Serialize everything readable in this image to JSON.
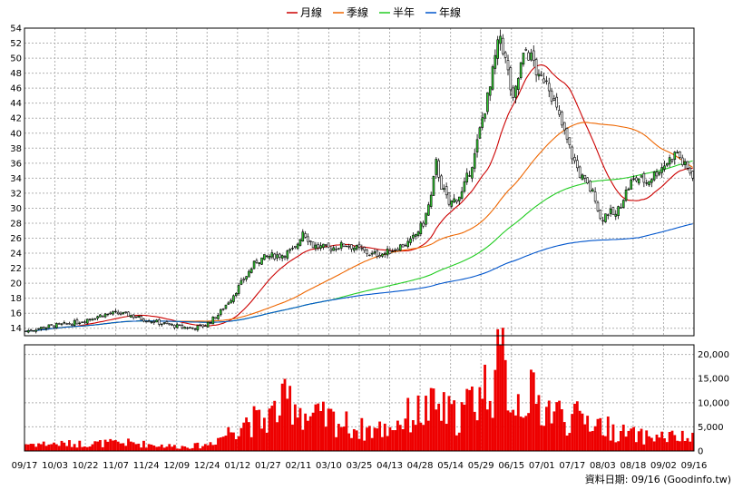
{
  "chart_data": {
    "type": "candlestick",
    "legend": [
      {
        "name": "月線",
        "color": "#cc0000"
      },
      {
        "name": "季線",
        "color": "#ee6600"
      },
      {
        "name": "半年",
        "color": "#22cc22"
      },
      {
        "name": "年線",
        "color": "#0055cc"
      }
    ],
    "legend_position": "top-center",
    "grid": true,
    "price_axis": {
      "ylim": [
        13,
        54
      ],
      "ticks": [
        14,
        16,
        18,
        20,
        22,
        24,
        26,
        28,
        30,
        32,
        34,
        36,
        38,
        40,
        42,
        44,
        46,
        48,
        50,
        52,
        54
      ]
    },
    "volume_axis": {
      "ylim": [
        0,
        22000
      ],
      "ticks": [
        0,
        5000,
        10000,
        15000,
        20000
      ],
      "tick_labels": [
        "0",
        "5,000",
        "10,000",
        "15,000",
        "20,000"
      ]
    },
    "x_tick_labels": [
      "09/17",
      "10/03",
      "10/22",
      "11/07",
      "11/24",
      "12/09",
      "12/24",
      "01/12",
      "01/27",
      "02/11",
      "03/10",
      "03/25",
      "04/13",
      "04/28",
      "05/14",
      "05/29",
      "06/15",
      "07/01",
      "07/17",
      "08/03",
      "08/18",
      "09/02",
      "09/16"
    ],
    "up_color": "#33cc33",
    "down_color": "#ffffff",
    "volume_color": "#ee0000",
    "price_anchors": [
      [
        0,
        13.6
      ],
      [
        5,
        14.0
      ],
      [
        10,
        14.3
      ],
      [
        15,
        14.5
      ],
      [
        20,
        14.8
      ],
      [
        25,
        15.3
      ],
      [
        30,
        15.8
      ],
      [
        35,
        16.0
      ],
      [
        40,
        15.8
      ],
      [
        45,
        15.3
      ],
      [
        50,
        14.9
      ],
      [
        55,
        14.5
      ],
      [
        60,
        14.2
      ],
      [
        65,
        14.0
      ],
      [
        70,
        14.4
      ],
      [
        75,
        15.8
      ],
      [
        80,
        18.0
      ],
      [
        85,
        20.5
      ],
      [
        90,
        23.0
      ],
      [
        95,
        23.6
      ],
      [
        100,
        23.8
      ],
      [
        105,
        24.5
      ],
      [
        108,
        27.0
      ],
      [
        112,
        25.0
      ],
      [
        118,
        24.6
      ],
      [
        125,
        25.2
      ],
      [
        130,
        24.5
      ],
      [
        135,
        23.8
      ],
      [
        140,
        24.0
      ],
      [
        145,
        24.8
      ],
      [
        150,
        25.5
      ],
      [
        155,
        28.0
      ],
      [
        158,
        31.5
      ],
      [
        160,
        36.0
      ],
      [
        162,
        33.0
      ],
      [
        165,
        30.5
      ],
      [
        170,
        32.0
      ],
      [
        175,
        37.0
      ],
      [
        178,
        42.0
      ],
      [
        181,
        46.0
      ],
      [
        183,
        50.0
      ],
      [
        185,
        53.0
      ],
      [
        188,
        48.0
      ],
      [
        190,
        44.0
      ],
      [
        193,
        49.0
      ],
      [
        195,
        51.0
      ],
      [
        198,
        49.5
      ],
      [
        200,
        47.0
      ],
      [
        203,
        47.5
      ],
      [
        206,
        44.0
      ],
      [
        210,
        40.0
      ],
      [
        213,
        37.0
      ],
      [
        216,
        34.5
      ],
      [
        219,
        33.0
      ],
      [
        222,
        31.5
      ],
      [
        224,
        28.5
      ],
      [
        227,
        29.5
      ],
      [
        230,
        29.0
      ],
      [
        233,
        31.5
      ],
      [
        236,
        33.5
      ],
      [
        239,
        34.0
      ],
      [
        242,
        33.5
      ],
      [
        245,
        34.5
      ],
      [
        248,
        35.5
      ],
      [
        251,
        36.5
      ],
      [
        254,
        37.5
      ],
      [
        256,
        36.0
      ],
      [
        258,
        35.2
      ],
      [
        260,
        34.5
      ]
    ],
    "volume_anchors": [
      [
        0,
        1500
      ],
      [
        20,
        1500
      ],
      [
        40,
        1700
      ],
      [
        60,
        900
      ],
      [
        70,
        1200
      ],
      [
        78,
        3500
      ],
      [
        85,
        6500
      ],
      [
        92,
        6000
      ],
      [
        98,
        8500
      ],
      [
        104,
        11000
      ],
      [
        110,
        7000
      ],
      [
        120,
        6500
      ],
      [
        130,
        4500
      ],
      [
        140,
        4500
      ],
      [
        150,
        7500
      ],
      [
        160,
        9000
      ],
      [
        168,
        7000
      ],
      [
        175,
        11000
      ],
      [
        182,
        15000
      ],
      [
        186,
        18000
      ],
      [
        190,
        10000
      ],
      [
        196,
        12000
      ],
      [
        200,
        9500
      ],
      [
        206,
        8500
      ],
      [
        212,
        6500
      ],
      [
        218,
        7000
      ],
      [
        224,
        5500
      ],
      [
        230,
        4000
      ],
      [
        240,
        3000
      ],
      [
        250,
        3000
      ],
      [
        260,
        2500
      ]
    ],
    "n_days": 261,
    "ma_periods": [
      20,
      60,
      120,
      240
    ]
  },
  "credit": "資料日期: 09/16  (Goodinfo.tw)"
}
